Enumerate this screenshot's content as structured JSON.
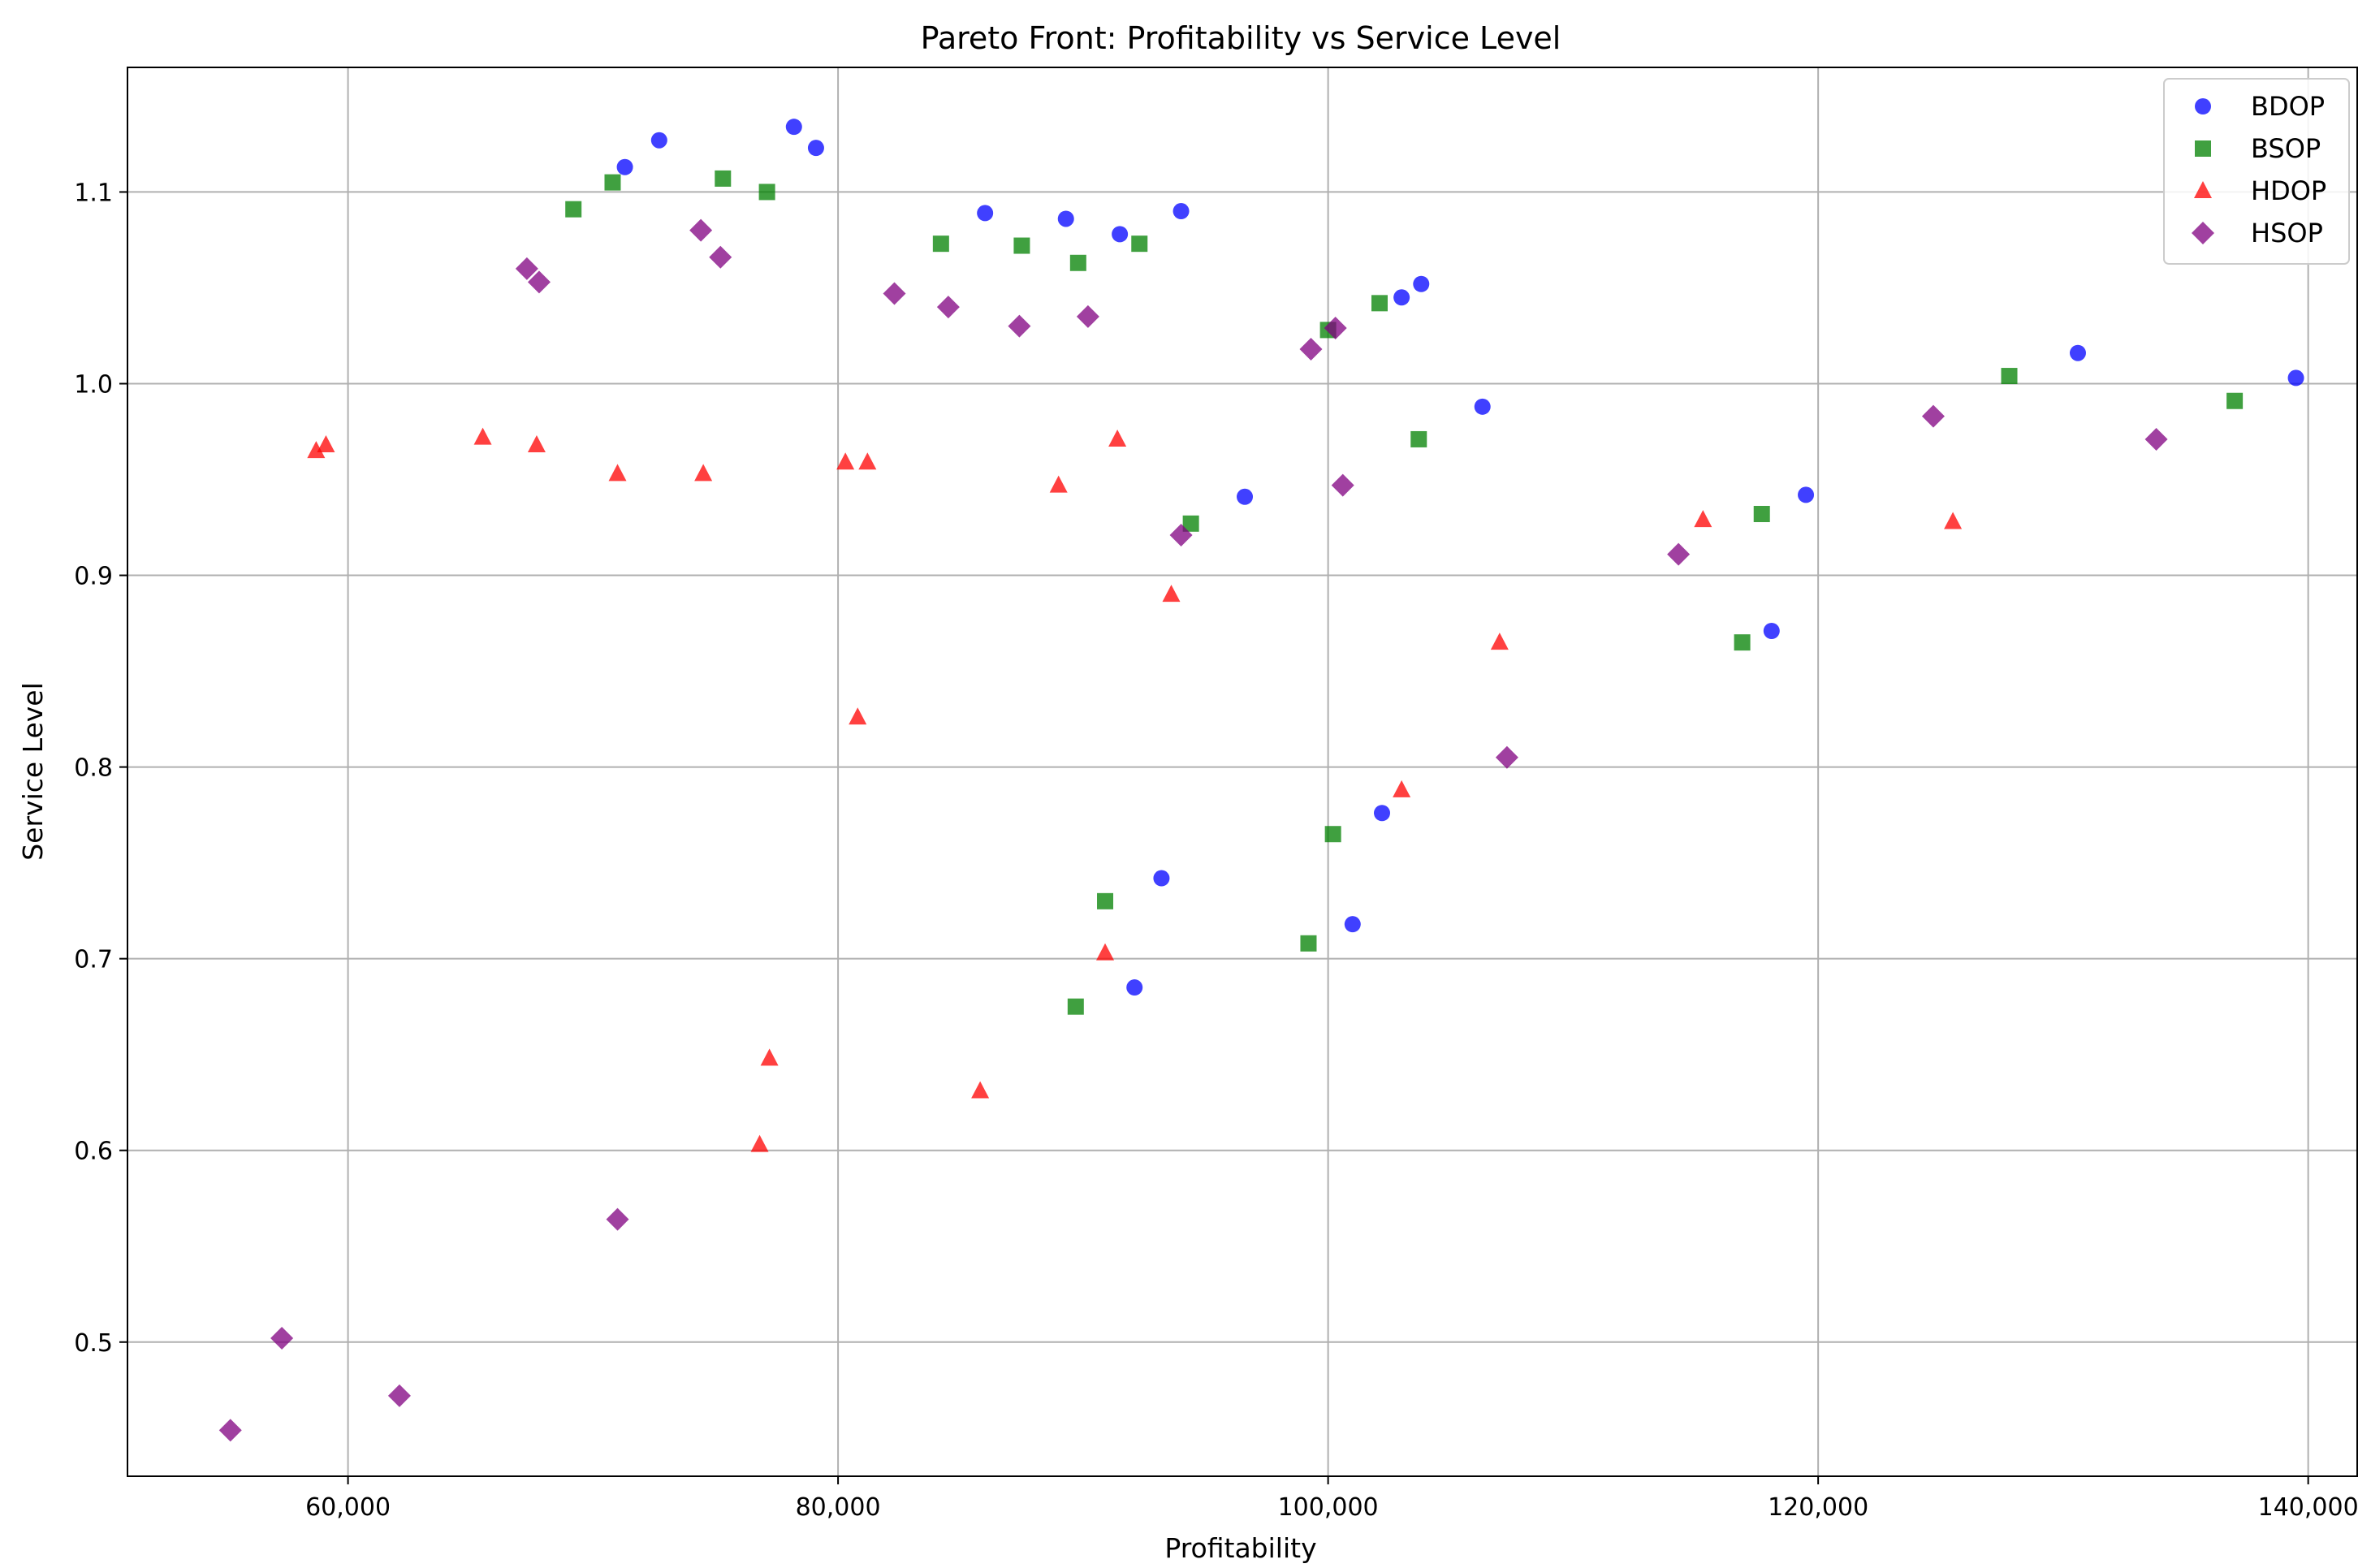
{
  "chart_data": {
    "type": "scatter",
    "title": "Pareto Front: Profitability vs Service Level",
    "xlabel": "Profitability",
    "ylabel": "Service Level",
    "xlim": [
      51000,
      142000
    ],
    "ylim": [
      0.43,
      1.165
    ],
    "x_ticks": [
      {
        "value": 60000,
        "label": "60,000"
      },
      {
        "value": 80000,
        "label": "80,000"
      },
      {
        "value": 100000,
        "label": "100,000"
      },
      {
        "value": 120000,
        "label": "120,000"
      },
      {
        "value": 140000,
        "label": "140,000"
      }
    ],
    "y_ticks": [
      {
        "value": 0.5,
        "label": "0.5"
      },
      {
        "value": 0.6,
        "label": "0.6"
      },
      {
        "value": 0.7,
        "label": "0.7"
      },
      {
        "value": 0.8,
        "label": "0.8"
      },
      {
        "value": 0.9,
        "label": "0.9"
      },
      {
        "value": 1.0,
        "label": "1.0"
      },
      {
        "value": 1.1,
        "label": "1.1"
      }
    ],
    "grid": true,
    "legend_position": "top-right",
    "series": [
      {
        "name": "BDOP",
        "marker": "circle",
        "color": "#0000ff",
        "points": [
          [
            71300,
            1.113
          ],
          [
            72700,
            1.127
          ],
          [
            78200,
            1.134
          ],
          [
            79100,
            1.123
          ],
          [
            86000,
            1.089
          ],
          [
            89300,
            1.086
          ],
          [
            91500,
            1.078
          ],
          [
            94000,
            1.09
          ],
          [
            103000,
            1.045
          ],
          [
            103800,
            1.052
          ],
          [
            106300,
            0.988
          ],
          [
            96600,
            0.941
          ],
          [
            119500,
            0.942
          ],
          [
            118100,
            0.871
          ],
          [
            130600,
            1.016
          ],
          [
            139500,
            1.003
          ],
          [
            102200,
            0.776
          ],
          [
            101000,
            0.718
          ],
          [
            93200,
            0.742
          ],
          [
            92100,
            0.685
          ]
        ]
      },
      {
        "name": "BSOP",
        "marker": "square",
        "color": "#008000",
        "points": [
          [
            69200,
            1.091
          ],
          [
            70800,
            1.105
          ],
          [
            75300,
            1.107
          ],
          [
            77100,
            1.1
          ],
          [
            84200,
            1.073
          ],
          [
            87500,
            1.072
          ],
          [
            89800,
            1.063
          ],
          [
            92300,
            1.073
          ],
          [
            100000,
            1.028
          ],
          [
            102100,
            1.042
          ],
          [
            103700,
            0.971
          ],
          [
            94400,
            0.927
          ],
          [
            117700,
            0.932
          ],
          [
            116900,
            0.865
          ],
          [
            127800,
            1.004
          ],
          [
            137000,
            0.991
          ],
          [
            100200,
            0.765
          ],
          [
            99200,
            0.708
          ],
          [
            90900,
            0.73
          ],
          [
            89700,
            0.675
          ]
        ]
      },
      {
        "name": "HDOP",
        "marker": "triangle",
        "color": "#ff0000",
        "points": [
          [
            58700,
            0.965
          ],
          [
            59100,
            0.968
          ],
          [
            65500,
            0.972
          ],
          [
            67700,
            0.968
          ],
          [
            71000,
            0.953
          ],
          [
            74500,
            0.953
          ],
          [
            80300,
            0.959
          ],
          [
            81200,
            0.959
          ],
          [
            91400,
            0.971
          ],
          [
            89000,
            0.947
          ],
          [
            93600,
            0.89
          ],
          [
            80800,
            0.826
          ],
          [
            107000,
            0.865
          ],
          [
            115300,
            0.929
          ],
          [
            125500,
            0.928
          ],
          [
            103000,
            0.788
          ],
          [
            90900,
            0.703
          ],
          [
            85800,
            0.631
          ],
          [
            77200,
            0.648
          ],
          [
            76800,
            0.603
          ]
        ]
      },
      {
        "name": "HSOP",
        "marker": "diamond",
        "color": "#800080",
        "points": [
          [
            67300,
            1.06
          ],
          [
            67800,
            1.053
          ],
          [
            74400,
            1.08
          ],
          [
            75200,
            1.066
          ],
          [
            82300,
            1.047
          ],
          [
            84500,
            1.04
          ],
          [
            87400,
            1.03
          ],
          [
            90200,
            1.035
          ],
          [
            99300,
            1.018
          ],
          [
            100300,
            1.029
          ],
          [
            100600,
            0.947
          ],
          [
            94000,
            0.921
          ],
          [
            114300,
            0.911
          ],
          [
            107300,
            0.805
          ],
          [
            124700,
            0.983
          ],
          [
            133800,
            0.971
          ],
          [
            71000,
            0.564
          ],
          [
            62100,
            0.472
          ],
          [
            57300,
            0.502
          ],
          [
            55200,
            0.454
          ]
        ]
      }
    ]
  }
}
